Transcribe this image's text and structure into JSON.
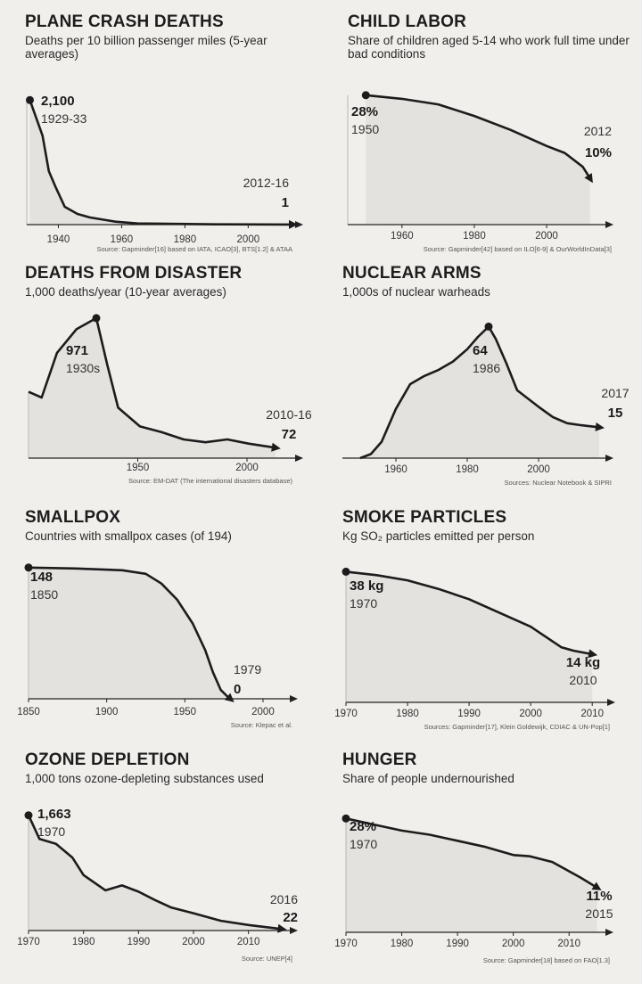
{
  "chart_data": [
    {
      "type": "area",
      "title": "PLANE CRASH DEATHS",
      "subtitle": "Deaths per 10 billion passenger miles (5-year averages)",
      "x_ticks": [
        1940,
        1960,
        1980,
        2000
      ],
      "xlim": [
        1930,
        2014
      ],
      "ylim": [
        0,
        2300
      ],
      "points": [
        [
          1931,
          2100
        ],
        [
          1935,
          1500
        ],
        [
          1937,
          900
        ],
        [
          1939,
          650
        ],
        [
          1942,
          300
        ],
        [
          1946,
          180
        ],
        [
          1950,
          120
        ],
        [
          1958,
          50
        ],
        [
          1965,
          20
        ],
        [
          1990,
          5
        ],
        [
          2014,
          1
        ]
      ],
      "start": {
        "value": "2,100",
        "period": "1929-33"
      },
      "end": {
        "value": "1",
        "period": "2012-16"
      },
      "source": "Source: Gapminder[16] based on IATA, ICAO[3], BTS[1.2] & ATAA"
    },
    {
      "type": "area",
      "title": "CHILD LABOR",
      "subtitle": "Share of children aged 5-14 who work full time under bad conditions",
      "x_ticks": [
        1960,
        1980,
        2000
      ],
      "xlim": [
        1945,
        2017
      ],
      "ylim": [
        0,
        32
      ],
      "points": [
        [
          1950,
          28
        ],
        [
          1960,
          27.2
        ],
        [
          1970,
          26
        ],
        [
          1980,
          23.5
        ],
        [
          1990,
          20.5
        ],
        [
          2000,
          17
        ],
        [
          2005,
          15.5
        ],
        [
          2010,
          12.5
        ],
        [
          2012,
          10
        ]
      ],
      "start": {
        "value": "28%",
        "period": "1950"
      },
      "end": {
        "value": "10%",
        "period": "2012"
      },
      "source": "Source: Gapminder[42] based on ILO[6-9] & OurWorldInData[3]"
    },
    {
      "type": "area",
      "title": "DEATHS FROM DISASTER",
      "subtitle": "1,000 deaths/year (10-year averages)",
      "x_ticks": [
        1950,
        2000
      ],
      "xlim": [
        1900,
        2020
      ],
      "ylim": [
        0,
        1100
      ],
      "points": [
        [
          1900,
          460
        ],
        [
          1906,
          420
        ],
        [
          1913,
          730
        ],
        [
          1922,
          895
        ],
        [
          1931,
          971
        ],
        [
          1936,
          650
        ],
        [
          1941,
          350
        ],
        [
          1951,
          220
        ],
        [
          1961,
          180
        ],
        [
          1971,
          130
        ],
        [
          1981,
          110
        ],
        [
          1991,
          130
        ],
        [
          2001,
          100
        ],
        [
          2013,
          72
        ]
      ],
      "start": {
        "value": "971",
        "period": "1930s"
      },
      "end": {
        "value": "72",
        "period": "2010-16"
      },
      "source": "Source: EM-DAT (The international disasters database)"
    },
    {
      "type": "area",
      "title": "NUCLEAR ARMS",
      "subtitle": "1,000s of nuclear warheads",
      "x_ticks": [
        1960,
        1980,
        2000
      ],
      "xlim": [
        1945,
        2020
      ],
      "ylim": [
        0,
        72
      ],
      "points": [
        [
          1950,
          0
        ],
        [
          1953,
          2
        ],
        [
          1956,
          8
        ],
        [
          1960,
          24
        ],
        [
          1964,
          36
        ],
        [
          1968,
          40
        ],
        [
          1972,
          43
        ],
        [
          1976,
          47
        ],
        [
          1980,
          53
        ],
        [
          1983,
          59
        ],
        [
          1986,
          64
        ],
        [
          1988,
          58
        ],
        [
          1991,
          46
        ],
        [
          1994,
          33
        ],
        [
          1997,
          29
        ],
        [
          2000,
          25
        ],
        [
          2004,
          20
        ],
        [
          2008,
          17
        ],
        [
          2012,
          16
        ],
        [
          2017,
          15
        ]
      ],
      "start": {
        "value": "64",
        "period": "1986"
      },
      "end": {
        "value": "15",
        "period": "2017"
      },
      "source": "Sources: Nuclear Notebook & SIPRI"
    },
    {
      "type": "area",
      "title": "SMALLPOX",
      "subtitle": "Countries with smallpox cases (of 194)",
      "x_ticks": [
        1850,
        1900,
        1950,
        2000
      ],
      "xlim": [
        1850,
        2020
      ],
      "ylim": [
        0,
        175
      ],
      "points": [
        [
          1850,
          148
        ],
        [
          1880,
          147
        ],
        [
          1910,
          145
        ],
        [
          1925,
          141
        ],
        [
          1935,
          130
        ],
        [
          1945,
          112
        ],
        [
          1955,
          85
        ],
        [
          1963,
          55
        ],
        [
          1968,
          30
        ],
        [
          1973,
          10
        ],
        [
          1977,
          3
        ],
        [
          1979,
          0
        ]
      ],
      "start": {
        "value": "148",
        "period": "1850"
      },
      "end": {
        "value": "0",
        "period": "1979"
      },
      "source": "Source: Klepac et al."
    },
    {
      "type": "area",
      "title": "SMOKE PARTICLES",
      "subtitle": "Kg SO₂ particles emitted per person",
      "x_ticks": [
        1970,
        1980,
        1990,
        2000,
        2010
      ],
      "xlim": [
        1970,
        2012
      ],
      "ylim": [
        0,
        42
      ],
      "points": [
        [
          1970,
          38
        ],
        [
          1975,
          37
        ],
        [
          1980,
          35.5
        ],
        [
          1985,
          33
        ],
        [
          1990,
          30
        ],
        [
          1995,
          26
        ],
        [
          2000,
          22
        ],
        [
          2005,
          16
        ],
        [
          2007,
          15
        ],
        [
          2010,
          14
        ]
      ],
      "start": {
        "value": "38 kg",
        "period": "1970"
      },
      "end": {
        "value": "14 kg",
        "period": "2010"
      },
      "source": "Sources: Gapminder[17], Klein Goldewijk, CDIAC & UN-Pop[1]"
    },
    {
      "type": "area",
      "title": "OZONE DEPLETION",
      "subtitle": "1,000 tons ozone-depleting substances used",
      "x_ticks": [
        1970,
        1980,
        1990,
        2000,
        2010
      ],
      "xlim": [
        1970,
        2018
      ],
      "ylim": [
        0,
        1800
      ],
      "points": [
        [
          1970,
          1663
        ],
        [
          1972,
          1320
        ],
        [
          1975,
          1250
        ],
        [
          1978,
          1050
        ],
        [
          1980,
          800
        ],
        [
          1984,
          580
        ],
        [
          1987,
          650
        ],
        [
          1990,
          560
        ],
        [
          1993,
          440
        ],
        [
          1996,
          330
        ],
        [
          2000,
          250
        ],
        [
          2005,
          140
        ],
        [
          2010,
          80
        ],
        [
          2016,
          22
        ]
      ],
      "start": {
        "value": "1,663",
        "period": "1970"
      },
      "end": {
        "value": "22",
        "period": "2016"
      },
      "source": "Source: UNEP[4]"
    },
    {
      "type": "area",
      "title": "HUNGER",
      "subtitle": "Share of people undernourished",
      "x_ticks": [
        1970,
        1980,
        1990,
        2000,
        2010
      ],
      "xlim": [
        1970,
        2017
      ],
      "ylim": [
        0,
        32
      ],
      "points": [
        [
          1970,
          28
        ],
        [
          1975,
          26.5
        ],
        [
          1980,
          25
        ],
        [
          1985,
          24
        ],
        [
          1990,
          22.5
        ],
        [
          1995,
          21
        ],
        [
          2000,
          19
        ],
        [
          2003,
          18.7
        ],
        [
          2007,
          17.3
        ],
        [
          2012,
          13.5
        ],
        [
          2015,
          11
        ]
      ],
      "start": {
        "value": "28%",
        "period": "1970"
      },
      "end": {
        "value": "11%",
        "period": "2015"
      },
      "source": "Source: Gapminder[18] based on FAO[1.3]"
    }
  ]
}
